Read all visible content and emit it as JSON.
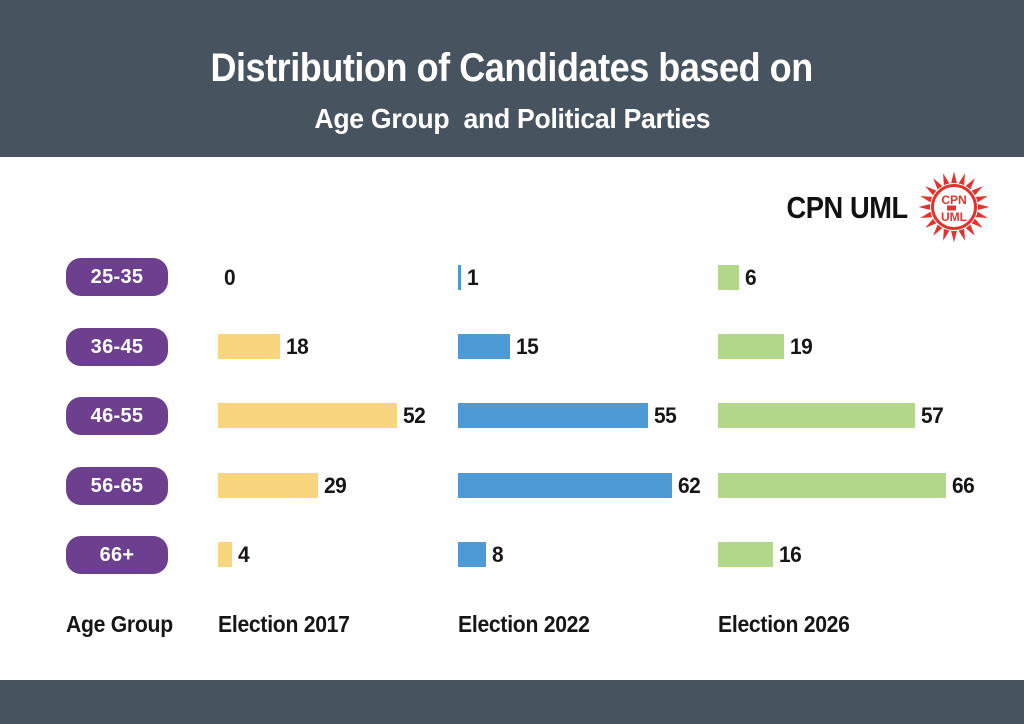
{
  "header": {
    "title": "Distribution of Candidates based on",
    "subtitle": "Age Group  and Political Parties"
  },
  "party": {
    "name": "CPN UML",
    "logo_icon": "sunburst-emblem-icon"
  },
  "chart_data": {
    "type": "bar",
    "orientation": "horizontal",
    "title": "Distribution of Candidates based on",
    "subtitle": "Age Group  and Political Parties",
    "party": "CPN UML",
    "categories": [
      "25-35",
      "36-45",
      "46-55",
      "56-65",
      "66+"
    ],
    "category_axis_label": "Age Group",
    "series": [
      {
        "name": "Election 2017",
        "color": "#F9D57D",
        "values": [
          0,
          18,
          52,
          29,
          4
        ]
      },
      {
        "name": "Election 2022",
        "color": "#4E9AD5",
        "values": [
          1,
          15,
          55,
          62,
          8
        ]
      },
      {
        "name": "Election 2026",
        "color": "#B3D88C",
        "values": [
          6,
          19,
          57,
          66,
          16
        ]
      }
    ],
    "value_labels_shown": true,
    "xlim": [
      0,
      70
    ],
    "grid": false,
    "legend_position": "column-headers-bottom"
  },
  "colors": {
    "band": "#47535E",
    "pill": "#6C3F8F",
    "bar_2017": "#F9D57D",
    "bar_2022": "#4E9AD5",
    "bar_2026": "#B3D88C",
    "logo_red": "#E2342E",
    "text_dark": "#161616",
    "background": "#FFFFFF"
  }
}
